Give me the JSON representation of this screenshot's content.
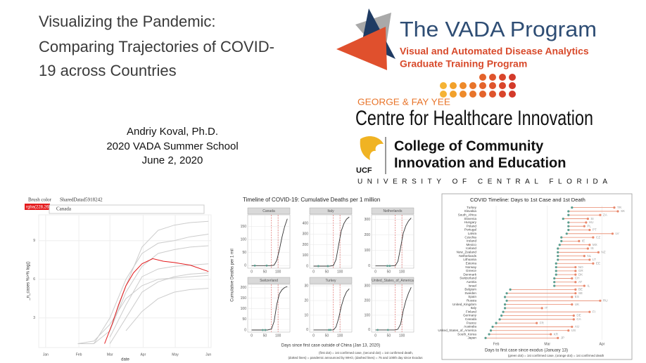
{
  "slide_title": [
    "Visualizing the Pandemic:",
    "Comparing Trajectories of COVID-",
    "19 across Countries"
  ],
  "author": [
    "Andriy Koval, Ph.D.",
    "2020 VADA Summer School",
    "June 2, 2020"
  ],
  "vada": {
    "name": "The VADA Program",
    "subtitle": [
      "Visual and Automated Disease Analytics",
      "Graduate Training Program"
    ]
  },
  "chi": {
    "kicker": "GEORGE & FAY YEE",
    "name": "Centre for Healthcare Innovation"
  },
  "ucf": {
    "mark": "UCF",
    "college": [
      "College of Community",
      "Innovation and Education"
    ],
    "university": "UNIVERSITY OF CENTRAL FLORIDA"
  },
  "chart_data": [
    {
      "type": "line",
      "controls": {
        "brush_label": "Brush color",
        "shared_label": "SharedDatad5918242",
        "color_value": "rgba(228,26",
        "selected": "Canada"
      },
      "xlabel": "date",
      "ylabel": "_n_cases %>% log()",
      "xlim": [
        -6.5,
        154.5
      ],
      "ylim": [
        0.7,
        11
      ],
      "xticks": [
        {
          "value": 0,
          "label": "Jan"
        },
        {
          "value": 31,
          "label": "Feb"
        },
        {
          "value": 60,
          "label": "Mar"
        },
        {
          "value": 91,
          "label": "Apr"
        },
        {
          "value": 121,
          "label": "May"
        },
        {
          "value": 152,
          "label": "Jun"
        }
      ],
      "yticks": [
        3,
        6,
        9
      ],
      "grid": true,
      "series": [
        {
          "color": "#cccccc",
          "x": [
            30,
            45,
            60,
            75,
            90,
            105,
            120,
            135,
            152
          ],
          "values": [
            null,
            null,
            2,
            5.5,
            8.5,
            9.8,
            10.2,
            10.4,
            10.5
          ]
        },
        {
          "color": "#cccccc",
          "x": [
            30,
            45,
            60,
            75,
            90,
            105,
            120,
            135,
            152
          ],
          "values": [
            1,
            1,
            3,
            6,
            8,
            8.8,
            9,
            9.3,
            9.5
          ]
        },
        {
          "color": "#cccccc",
          "x": [
            30,
            45,
            60,
            75,
            90,
            105,
            120,
            135,
            152
          ],
          "values": [
            null,
            1,
            2,
            5,
            7,
            8,
            8.3,
            8.5,
            8.6
          ]
        },
        {
          "color": "#cccccc",
          "x": [
            30,
            45,
            60,
            75,
            90,
            105,
            120,
            135,
            152
          ],
          "values": [
            null,
            null,
            1.5,
            4,
            6.2,
            6.8,
            7,
            7.1,
            7.2
          ]
        },
        {
          "color": "#cccccc",
          "x": [
            30,
            45,
            60,
            75,
            90,
            105,
            120,
            135,
            152
          ],
          "values": [
            null,
            null,
            1,
            3,
            5,
            5.8,
            6.2,
            6.4,
            6.5
          ]
        },
        {
          "color": "#cccccc",
          "x": [
            30,
            45,
            60,
            75,
            90,
            105,
            120,
            135,
            152
          ],
          "values": [
            1,
            1.2,
            2.5,
            4.5,
            5.5,
            6,
            6.1,
            6.2,
            6.3
          ]
        },
        {
          "color": "#cccccc",
          "x": [
            30,
            45,
            60,
            75,
            90,
            105,
            120,
            135,
            152
          ],
          "values": [
            null,
            null,
            null,
            2,
            3.5,
            4.5,
            5,
            5.2,
            5.3
          ]
        },
        {
          "color": "#e41a1c",
          "x": [
            55,
            62,
            68,
            75,
            82,
            90,
            100,
            110,
            120,
            135,
            152
          ],
          "values": [
            1,
            2.5,
            4,
            5.5,
            6.5,
            7.2,
            7.6,
            7.4,
            7.3,
            7.1,
            6.6
          ]
        }
      ]
    },
    {
      "type": "facet-line",
      "title": "Timeline of COVID-19: Cumulative Deaths per 1 million",
      "xlabel": "Days since first case outside of China (Jan 13, 2020)",
      "ylabel": "Cumulative Deaths per 1 mil",
      "notes": [
        "(first dot) = 1st confirmed case, (second dot) = 1st confirmed death,",
        "(dotted lines) = pandemic announced by WHO, (dashed lines) = 75 and 100th day since Exodus"
      ],
      "xlim": [
        -15,
        145
      ],
      "xticks": [
        0,
        50,
        100
      ],
      "vlines": [
        75,
        100
      ],
      "color": "#333333",
      "vline_color": "#d9534f",
      "dot_color": "#5a9e8f",
      "facets": [
        {
          "name": "Canada",
          "x": [
            0,
            60,
            75,
            85,
            95,
            105,
            115,
            125,
            135
          ],
          "values": [
            0,
            0,
            0,
            2,
            20,
            60,
            110,
            150,
            180
          ],
          "ylim": [
            -10,
            195
          ],
          "yticks": [
            0,
            50,
            100,
            150
          ],
          "dots": [
            12,
            57
          ]
        },
        {
          "name": "Italy",
          "x": [
            0,
            60,
            75,
            85,
            95,
            105,
            115,
            125,
            135
          ],
          "values": [
            0,
            0,
            5,
            60,
            200,
            330,
            400,
            440,
            460
          ],
          "ylim": [
            -20,
            480
          ],
          "yticks": [
            0,
            100,
            200,
            300,
            400
          ],
          "dots": [
            18,
            54
          ]
        },
        {
          "name": "Netherlands",
          "x": [
            0,
            60,
            75,
            85,
            95,
            105,
            115,
            125,
            135
          ],
          "values": [
            0,
            0,
            2,
            30,
            120,
            210,
            260,
            290,
            310
          ],
          "ylim": [
            -15,
            330
          ],
          "yticks": [
            0,
            100,
            200,
            300
          ],
          "dots": [
            45,
            54
          ]
        },
        {
          "name": "Switzerland",
          "x": [
            0,
            60,
            75,
            85,
            95,
            105,
            115,
            125,
            135
          ],
          "values": [
            0,
            0,
            5,
            40,
            120,
            170,
            190,
            200,
            205
          ],
          "ylim": [
            -10,
            215
          ],
          "yticks": [
            0,
            50,
            100,
            150,
            200
          ],
          "dots": [
            42,
            52
          ]
        },
        {
          "name": "Turkey",
          "x": [
            0,
            60,
            75,
            85,
            95,
            105,
            115,
            125,
            135
          ],
          "values": [
            0,
            0,
            0,
            2,
            8,
            16,
            22,
            26,
            28
          ],
          "ylim": [
            -1.5,
            31
          ],
          "yticks": [
            0,
            10,
            20,
            30
          ],
          "dots": [
            58,
            64
          ]
        },
        {
          "name": "United_States_of_America",
          "x": [
            0,
            60,
            75,
            85,
            95,
            105,
            115,
            125,
            135
          ],
          "values": [
            0,
            0,
            0,
            5,
            40,
            130,
            200,
            250,
            290
          ],
          "ylim": [
            -15,
            310
          ],
          "yticks": [
            0,
            100,
            200,
            300
          ],
          "dots": [
            8,
            47
          ]
        }
      ]
    },
    {
      "type": "dumbbell",
      "title": "COVID Timeline: Days to 1st Case and 1st Death",
      "xlabel": "Days to first case since exodus (January 13)",
      "note": "(green dot) = 1st confirmed case, (orange dot) = 1st confirmed death",
      "xlim": [
        9,
        94
      ],
      "xticks": [
        {
          "value": 19,
          "label": "Feb"
        },
        {
          "value": 48,
          "label": "Mar"
        },
        {
          "value": 79,
          "label": "Apr"
        }
      ],
      "categories": [
        "Turkey",
        "Slovakia",
        "South_Africa",
        "Slovenia",
        "Hungary",
        "Poland",
        "Portugal",
        "Latvia",
        "Czechia",
        "Ireland",
        "Mexico",
        "Iceland",
        "New_Zealand",
        "Netherlands",
        "Lithuania",
        "Estonia",
        "Norway",
        "Greece",
        "Denmark",
        "Switzerland",
        "Austria",
        "Israel",
        "Belgium",
        "Sweden",
        "Spain",
        "Russia",
        "United_Kingdom",
        "Italy",
        "Finland",
        "Germany",
        "Canada",
        "France",
        "Australia",
        "United_States_of_America",
        "South_Korea",
        "Japan"
      ],
      "codes": [
        "TR",
        "SK",
        "ZA",
        "SI",
        "HU",
        "PL",
        "PT",
        "LV",
        "CZ",
        "IE",
        "MX",
        "IS",
        "NZ",
        "NL",
        "LT",
        "EE",
        "NO",
        "GR",
        "DK",
        "CH",
        "AT",
        "IL",
        "BE",
        "SE",
        "ES",
        "RU",
        "UK",
        "IT",
        "FI",
        "DE",
        "CA",
        "FR",
        "AU",
        "US",
        "KR",
        "JP"
      ],
      "series": [
        {
          "color": "#5a9e8f",
          "values": [
            62,
            60,
            60,
            57,
            60,
            60,
            60,
            59,
            56,
            56,
            55,
            54,
            54,
            54,
            54,
            53,
            53,
            53,
            53,
            52,
            52,
            52,
            27,
            25,
            24,
            25,
            24,
            24,
            23,
            22,
            21,
            19,
            17,
            16,
            15,
            13
          ]
        },
        {
          "color": "#e8876b",
          "values": [
            86,
            88,
            78,
            71,
            70,
            69,
            72,
            85,
            74,
            66,
            72,
            71,
            77,
            69,
            72,
            74,
            64,
            64,
            64,
            62,
            64,
            69,
            64,
            64,
            62,
            78,
            62,
            45,
            72,
            63,
            63,
            42,
            62,
            60,
            50,
            54
          ]
        }
      ]
    }
  ]
}
